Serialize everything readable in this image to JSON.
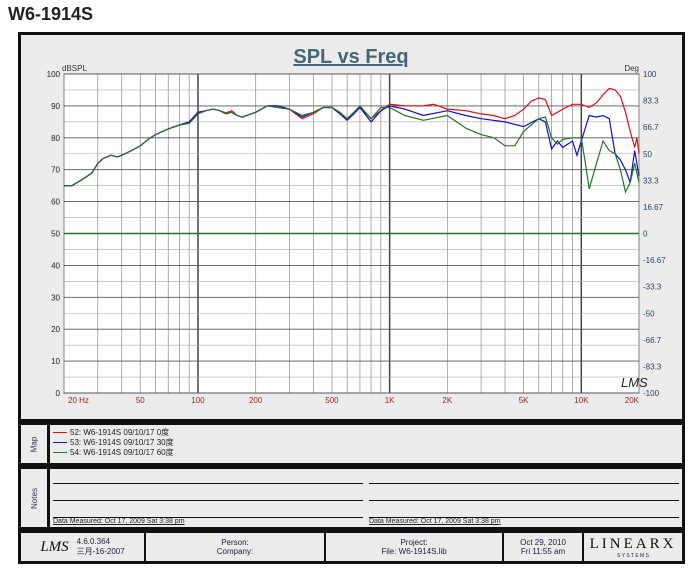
{
  "page_title": "W6-1914S",
  "chart_data": {
    "type": "line",
    "title": "SPL vs Freq",
    "ylabel": "dBSPL",
    "y2label": "Deg",
    "xscale": "log",
    "xlim": [
      20,
      20000
    ],
    "ylim": [
      0,
      100
    ],
    "y2lim": [
      -100,
      100
    ],
    "grid": true,
    "xticks": [
      {
        "v": 20,
        "t": "20  Hz"
      },
      {
        "v": 50,
        "t": "50"
      },
      {
        "v": 100,
        "t": "100"
      },
      {
        "v": 200,
        "t": "200"
      },
      {
        "v": 500,
        "t": "500"
      },
      {
        "v": 1000,
        "t": "1K"
      },
      {
        "v": 2000,
        "t": "2K"
      },
      {
        "v": 5000,
        "t": "5K"
      },
      {
        "v": 10000,
        "t": "10K"
      },
      {
        "v": 20000,
        "t": "20K"
      }
    ],
    "yticks": [
      "0",
      "10",
      "20",
      "30",
      "40",
      "50",
      "60",
      "70",
      "80",
      "90",
      "100"
    ],
    "y2ticks": [
      "-100",
      "-83.3",
      "-66.7",
      "-50",
      "-33.3",
      "-16.67",
      "0",
      "16.67",
      "33.3",
      "50",
      "66.7",
      "83.3",
      "100"
    ],
    "watermark": "LMS",
    "series": [
      {
        "name": "52: W6-1914S  09/10/17   0度",
        "color": "#dd1111",
        "points": [
          [
            20,
            65
          ],
          [
            22,
            65
          ],
          [
            25,
            67
          ],
          [
            28,
            69
          ],
          [
            30,
            72
          ],
          [
            32,
            73.5
          ],
          [
            35,
            74.5
          ],
          [
            38,
            74
          ],
          [
            40,
            74.5
          ],
          [
            45,
            76
          ],
          [
            50,
            77.5
          ],
          [
            55,
            79.5
          ],
          [
            60,
            81
          ],
          [
            70,
            82.8
          ],
          [
            80,
            84
          ],
          [
            90,
            85
          ],
          [
            100,
            88
          ],
          [
            110,
            88.5
          ],
          [
            120,
            89
          ],
          [
            130,
            88.5
          ],
          [
            140,
            87.8
          ],
          [
            150,
            88.5
          ],
          [
            160,
            87
          ],
          [
            170,
            86.5
          ],
          [
            200,
            88
          ],
          [
            230,
            90
          ],
          [
            260,
            90
          ],
          [
            300,
            89
          ],
          [
            350,
            86
          ],
          [
            400,
            87.5
          ],
          [
            450,
            89.5
          ],
          [
            500,
            89.5
          ],
          [
            550,
            88
          ],
          [
            600,
            86
          ],
          [
            650,
            88
          ],
          [
            700,
            89.5
          ],
          [
            800,
            86
          ],
          [
            900,
            88.5
          ],
          [
            1000,
            90.5
          ],
          [
            1200,
            90
          ],
          [
            1500,
            90
          ],
          [
            1700,
            90.5
          ],
          [
            2000,
            89
          ],
          [
            2500,
            88.5
          ],
          [
            3000,
            87.5
          ],
          [
            3500,
            87
          ],
          [
            4000,
            86
          ],
          [
            4500,
            87
          ],
          [
            5000,
            89
          ],
          [
            5500,
            91.5
          ],
          [
            6000,
            92.5
          ],
          [
            6500,
            92
          ],
          [
            7000,
            87
          ],
          [
            7500,
            88
          ],
          [
            8000,
            89
          ],
          [
            9000,
            90.5
          ],
          [
            10000,
            90.5
          ],
          [
            11000,
            89.5
          ],
          [
            12000,
            91
          ],
          [
            13000,
            93.5
          ],
          [
            14000,
            95.5
          ],
          [
            15000,
            95
          ],
          [
            16000,
            93
          ],
          [
            17000,
            88
          ],
          [
            18000,
            82
          ],
          [
            19000,
            77
          ],
          [
            19500,
            80
          ],
          [
            20000,
            75
          ]
        ]
      },
      {
        "name": "53: W6-1914S  09/10/17   30度",
        "color": "#1111cc",
        "points": [
          [
            20,
            65
          ],
          [
            22,
            65
          ],
          [
            25,
            67
          ],
          [
            28,
            69
          ],
          [
            30,
            72
          ],
          [
            32,
            73.5
          ],
          [
            35,
            74.5
          ],
          [
            38,
            74
          ],
          [
            40,
            74.5
          ],
          [
            45,
            76
          ],
          [
            50,
            77.5
          ],
          [
            55,
            79.5
          ],
          [
            60,
            81
          ],
          [
            70,
            82.8
          ],
          [
            80,
            84
          ],
          [
            90,
            85
          ],
          [
            100,
            88
          ],
          [
            110,
            88.5
          ],
          [
            120,
            89
          ],
          [
            130,
            88.5
          ],
          [
            140,
            87.5
          ],
          [
            150,
            88
          ],
          [
            160,
            87
          ],
          [
            170,
            86.5
          ],
          [
            200,
            88
          ],
          [
            230,
            90
          ],
          [
            260,
            90
          ],
          [
            300,
            89
          ],
          [
            350,
            86.5
          ],
          [
            400,
            88
          ],
          [
            450,
            89.5
          ],
          [
            500,
            89.5
          ],
          [
            550,
            87.5
          ],
          [
            600,
            85.5
          ],
          [
            650,
            87.5
          ],
          [
            700,
            89.5
          ],
          [
            800,
            85
          ],
          [
            900,
            88.5
          ],
          [
            1000,
            90
          ],
          [
            1200,
            89
          ],
          [
            1500,
            87
          ],
          [
            2000,
            88.5
          ],
          [
            2500,
            87
          ],
          [
            3000,
            86
          ],
          [
            4000,
            85
          ],
          [
            5000,
            83.5
          ],
          [
            6000,
            86
          ],
          [
            6500,
            85
          ],
          [
            7000,
            76.5
          ],
          [
            7500,
            79
          ],
          [
            8000,
            77
          ],
          [
            9000,
            79
          ],
          [
            9500,
            74.5
          ],
          [
            10000,
            79
          ],
          [
            11000,
            87
          ],
          [
            12000,
            86.5
          ],
          [
            13000,
            87
          ],
          [
            14000,
            86
          ],
          [
            15000,
            75
          ],
          [
            16000,
            73
          ],
          [
            17000,
            70
          ],
          [
            18000,
            66
          ],
          [
            19000,
            76
          ],
          [
            20000,
            68
          ]
        ]
      },
      {
        "name": "54: W6-1914S  09/10/17   60度",
        "color": "#227722",
        "points": [
          [
            20,
            65
          ],
          [
            22,
            65
          ],
          [
            25,
            67
          ],
          [
            28,
            69
          ],
          [
            30,
            72
          ],
          [
            32,
            73.5
          ],
          [
            35,
            74.5
          ],
          [
            38,
            74
          ],
          [
            40,
            74.5
          ],
          [
            45,
            76
          ],
          [
            50,
            77.5
          ],
          [
            55,
            79.5
          ],
          [
            60,
            81
          ],
          [
            70,
            82.8
          ],
          [
            80,
            84
          ],
          [
            90,
            84.5
          ],
          [
            100,
            87.5
          ],
          [
            110,
            88.5
          ],
          [
            120,
            89
          ],
          [
            130,
            88.5
          ],
          [
            140,
            87.5
          ],
          [
            150,
            88
          ],
          [
            160,
            87
          ],
          [
            170,
            86.5
          ],
          [
            200,
            88
          ],
          [
            230,
            90
          ],
          [
            260,
            89.5
          ],
          [
            300,
            89
          ],
          [
            350,
            87
          ],
          [
            400,
            88
          ],
          [
            450,
            89.5
          ],
          [
            500,
            89.5
          ],
          [
            550,
            88
          ],
          [
            600,
            86
          ],
          [
            650,
            88
          ],
          [
            700,
            90
          ],
          [
            800,
            86
          ],
          [
            900,
            89.5
          ],
          [
            1000,
            89.5
          ],
          [
            1200,
            87
          ],
          [
            1500,
            85.5
          ],
          [
            2000,
            87
          ],
          [
            2500,
            83
          ],
          [
            3000,
            81
          ],
          [
            3500,
            80
          ],
          [
            4000,
            77.5
          ],
          [
            4500,
            77.5
          ],
          [
            5000,
            82
          ],
          [
            6000,
            86
          ],
          [
            6500,
            86.5
          ],
          [
            7000,
            80
          ],
          [
            7500,
            78
          ],
          [
            8000,
            79.5
          ],
          [
            9000,
            80
          ],
          [
            10000,
            80
          ],
          [
            10500,
            72
          ],
          [
            11000,
            64
          ],
          [
            12000,
            72
          ],
          [
            13000,
            79
          ],
          [
            14000,
            76
          ],
          [
            15000,
            75
          ],
          [
            16000,
            70
          ],
          [
            17000,
            63
          ],
          [
            18000,
            66
          ],
          [
            19000,
            72
          ],
          [
            20000,
            66
          ]
        ]
      }
    ],
    "zero_line_color": "#227722"
  },
  "map": {
    "label": "Map"
  },
  "notes": {
    "label": "Notes",
    "measured_left": "Data Measured: Oct 17, 2009  Sat  3:38 pm",
    "measured_right": "Data Measured: Oct 17, 2009  Sat  3:38 pm"
  },
  "footer": {
    "logo": "LMS",
    "version": "4.6.0.364",
    "build_date": "三月-16-2007",
    "person": "Person:",
    "company": "Company:",
    "project": "Project:",
    "file": "File: W6-1914S.lib",
    "date": "Oct 29, 2010",
    "time": "Fri 11:55 am",
    "brand": "LINEARX",
    "brand_sub": "S Y S T E M S"
  }
}
